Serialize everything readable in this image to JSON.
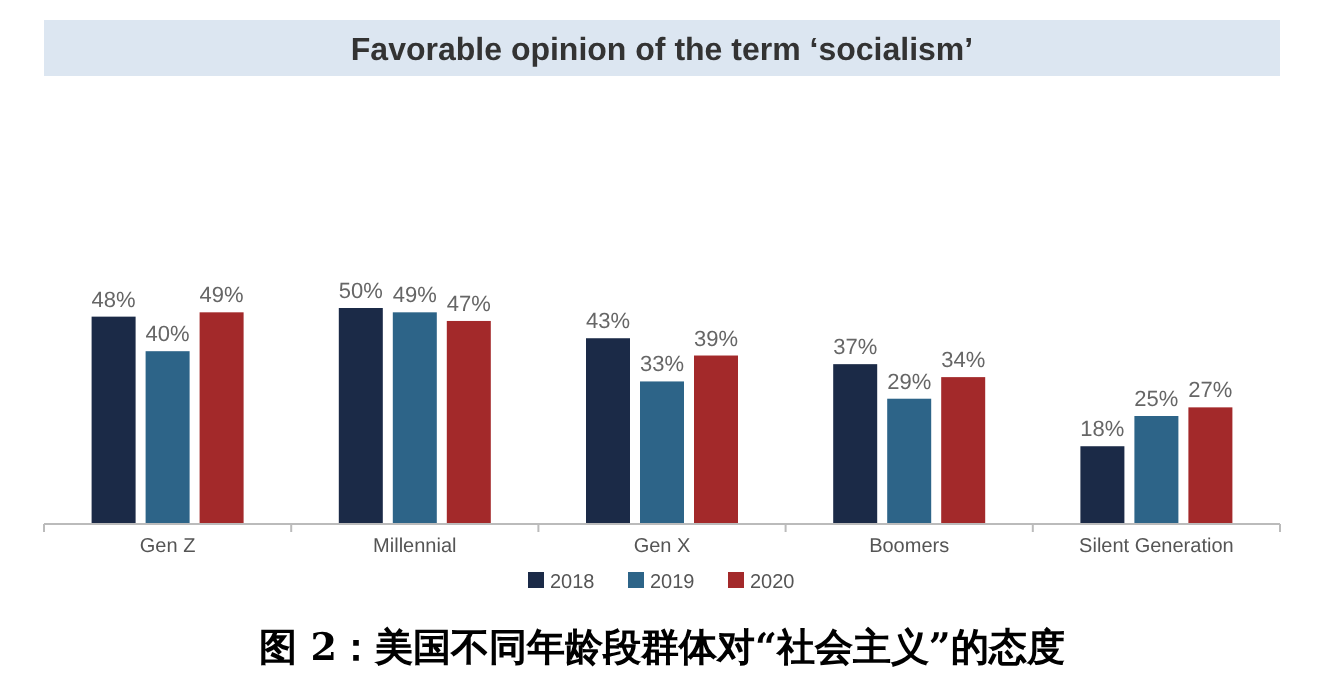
{
  "chart_data": {
    "type": "bar",
    "title": "Favorable opinion of the term ‘socialism’",
    "categories": [
      "Gen Z",
      "Millennial",
      "Gen X",
      "Boomers",
      "Silent Generation"
    ],
    "series": [
      {
        "name": "2018",
        "color": "#1b2a47",
        "values": [
          48,
          50,
          43,
          37,
          18
        ],
        "value_labels": [
          "48%",
          "50%",
          "43%",
          "37%",
          "18%"
        ]
      },
      {
        "name": "2019",
        "color": "#2d6488",
        "values": [
          40,
          49,
          33,
          29,
          25
        ],
        "value_labels": [
          "40%",
          "49%",
          "33%",
          "29%",
          "25%"
        ]
      },
      {
        "name": "2020",
        "color": "#a3292a",
        "values": [
          49,
          47,
          39,
          34,
          27
        ],
        "value_labels": [
          "49%",
          "47%",
          "39%",
          "34%",
          "27%"
        ]
      }
    ],
    "legend": "bottom",
    "annotations": [
      "图 2：美国不同年龄段群体对“社会主义”的态度"
    ]
  }
}
